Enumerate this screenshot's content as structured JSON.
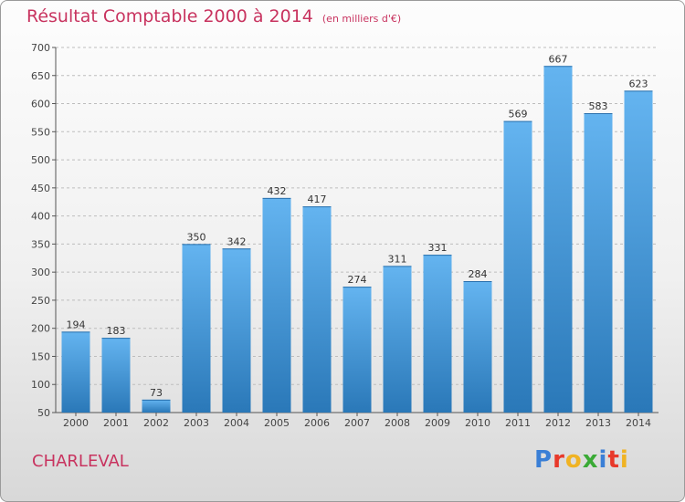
{
  "header": {
    "title": "Résultat Comptable 2000 à 2014",
    "unit_note": "(en milliers d'€)"
  },
  "footer": {
    "city": "CHARLEVAL",
    "brand_letters": [
      "P",
      "r",
      "o",
      "x",
      "i",
      "t",
      "i"
    ],
    "brand_colors": [
      "#3a7fd6",
      "#e8392a",
      "#f0b323",
      "#3aaa35",
      "#3a7fd6",
      "#e8392a",
      "#f0b323"
    ]
  },
  "colors": {
    "title": "#c8335f",
    "bar_top": "#64b4f0",
    "bar_bottom": "#2a78b8",
    "grid": "#bdbdbd"
  },
  "chart_data": {
    "type": "bar",
    "categories": [
      "2000",
      "2001",
      "2002",
      "2003",
      "2004",
      "2005",
      "2006",
      "2007",
      "2008",
      "2009",
      "2010",
      "2011",
      "2012",
      "2013",
      "2014"
    ],
    "values": [
      194,
      183,
      73,
      350,
      342,
      432,
      417,
      274,
      311,
      331,
      284,
      569,
      667,
      583,
      623
    ],
    "ylim": [
      50,
      700
    ],
    "yticks": [
      50,
      100,
      150,
      200,
      250,
      300,
      350,
      400,
      450,
      500,
      550,
      600,
      650,
      700
    ],
    "grid": "horizontal dashed",
    "data_labels": true
  }
}
